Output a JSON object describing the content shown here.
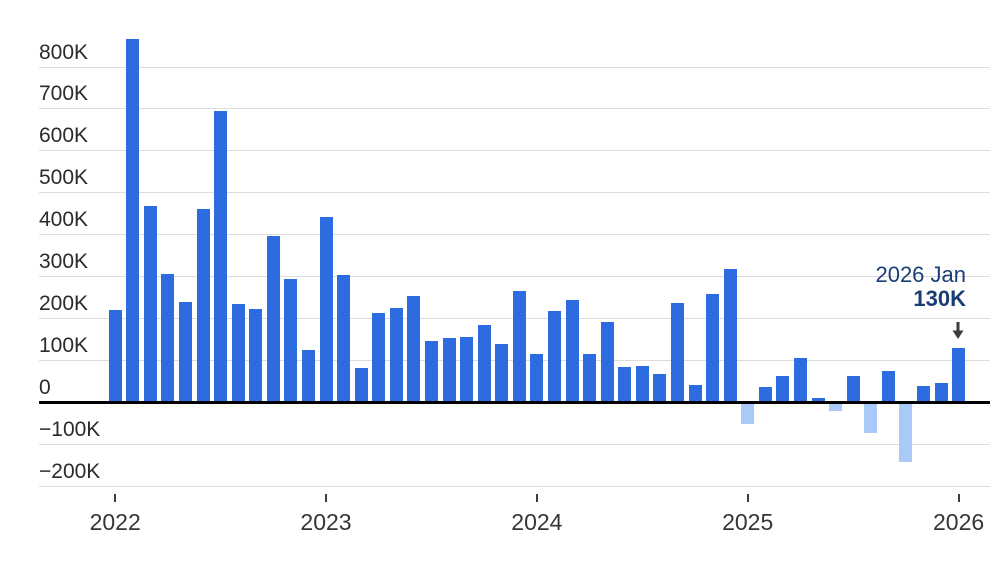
{
  "chart_data": {
    "type": "bar",
    "title": "",
    "unit": "thousands (K)",
    "categories": [
      "Jan 2022",
      "Feb 2022",
      "Mar 2022",
      "Apr 2022",
      "May 2022",
      "Jun 2022",
      "Jul 2022",
      "Aug 2022",
      "Sep 2022",
      "Oct 2022",
      "Nov 2022",
      "Dec 2022",
      "Jan 2023",
      "Feb 2023",
      "Mar 2023",
      "Apr 2023",
      "May 2023",
      "Jun 2023",
      "Jul 2023",
      "Aug 2023",
      "Sep 2023",
      "Oct 2023",
      "Nov 2023",
      "Dec 2023",
      "Jan 2024",
      "Feb 2024",
      "Mar 2024",
      "Apr 2024",
      "May 2024",
      "Jun 2024",
      "Jul 2024",
      "Aug 2024",
      "Sep 2024",
      "Oct 2024",
      "Nov 2024",
      "Dec 2024",
      "Jan 2025",
      "Feb 2025",
      "Mar 2025",
      "Apr 2025",
      "May 2025",
      "Jun 2025",
      "Jul 2025",
      "Aug 2025",
      "Sep 2025",
      "Oct 2025",
      "Nov 2025",
      "Dec 2025",
      "Jan 2026"
    ],
    "values": [
      220,
      865,
      468,
      305,
      238,
      460,
      693,
      233,
      221,
      397,
      293,
      123,
      441,
      303,
      81,
      213,
      225,
      252,
      145,
      153,
      155,
      183,
      138,
      265,
      115,
      218,
      243,
      114,
      190,
      83,
      86,
      68,
      237,
      41,
      258,
      318,
      -53,
      37,
      63,
      106,
      10,
      -21,
      61,
      -73,
      73,
      -142,
      38,
      45,
      130
    ],
    "ylim": [
      -250,
      900
    ],
    "grid": true,
    "legend": false,
    "y_ticks": [
      {
        "value": 800,
        "label": "800K"
      },
      {
        "value": 700,
        "label": "700K"
      },
      {
        "value": 600,
        "label": "600K"
      },
      {
        "value": 500,
        "label": "500K"
      },
      {
        "value": 400,
        "label": "400K"
      },
      {
        "value": 300,
        "label": "300K"
      },
      {
        "value": 200,
        "label": "200K"
      },
      {
        "value": 100,
        "label": "100K"
      },
      {
        "value": 0,
        "label": "0"
      },
      {
        "value": -100,
        "label": "−100K"
      },
      {
        "value": -200,
        "label": "−200K"
      }
    ],
    "x_ticks": [
      {
        "label": "2022",
        "month_index": 0
      },
      {
        "label": "2023",
        "month_index": 12
      },
      {
        "label": "2024",
        "month_index": 24
      },
      {
        "label": "2025",
        "month_index": 36
      },
      {
        "label": "2026",
        "month_index": 48
      }
    ]
  },
  "annotation": {
    "date_label": "2026 Jan",
    "value_label": "130K"
  },
  "colors": {
    "bar_positive": "#2d6be0",
    "bar_negative": "#a9c9f7",
    "annotation_text": "#1a3e73",
    "axis_label": "#2b2b2b",
    "x_axis_label": "#363636",
    "gridline": "#dcdcdc",
    "zero_line": "#000000",
    "tick_mark": "#3c3c3c",
    "arrow": "#3d3d3d",
    "background": "#ffffff"
  }
}
